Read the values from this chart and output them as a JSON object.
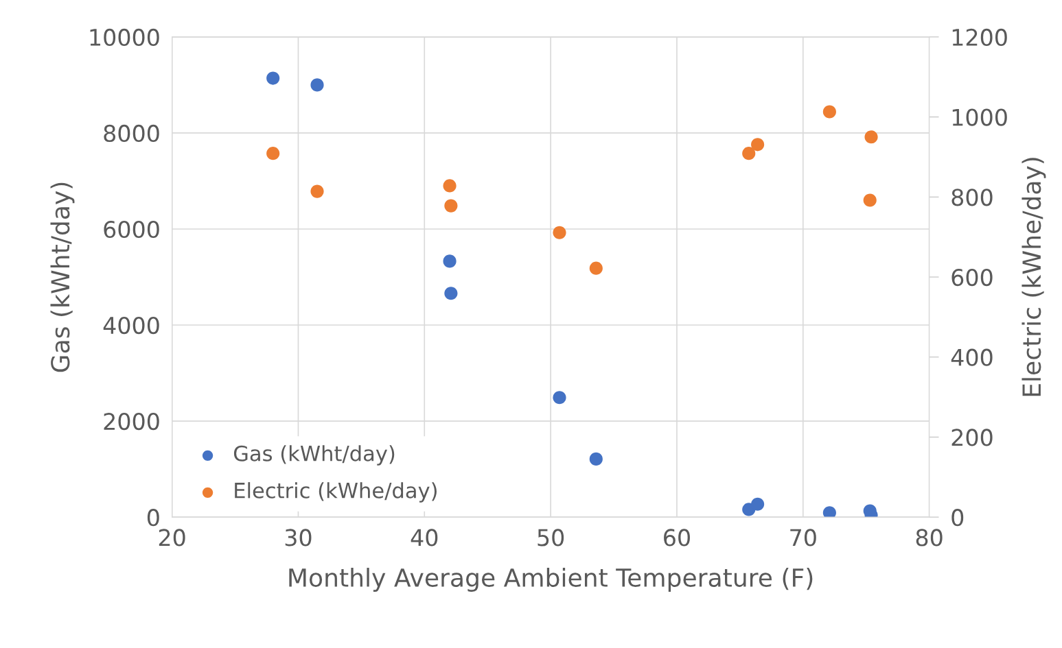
{
  "chart_data": {
    "type": "scatter",
    "xlabel": "Monthly Average Ambient Temperature (F)",
    "ylabel": "Gas (kWht/day)",
    "y2label": "Electric (kWhe/day)",
    "xlim": [
      20,
      80
    ],
    "xticks": [
      20,
      30,
      40,
      50,
      60,
      70,
      80
    ],
    "ylim": [
      0,
      10000
    ],
    "yticks": [
      0,
      2000,
      4000,
      6000,
      8000,
      10000
    ],
    "y2lim": [
      0,
      1200
    ],
    "y2ticks": [
      0,
      200,
      400,
      600,
      800,
      1000,
      1200
    ],
    "grid": true,
    "legend": "bottom left",
    "marker": "circle",
    "series": [
      {
        "name": "Gas (kWht/day)",
        "color": "#4472c4",
        "x": [
          28.0,
          31.5,
          42.0,
          42.1,
          50.7,
          53.6,
          65.7,
          66.4,
          72.1,
          75.3,
          75.4
        ],
        "values": [
          9140,
          9000,
          5330,
          4660,
          2490,
          1210,
          160,
          270,
          90,
          130,
          40
        ]
      },
      {
        "name": "Electric (kWhe/day)",
        "color": "#ed7d31",
        "axis": "y2",
        "x": [
          28.0,
          31.5,
          42.0,
          42.1,
          50.7,
          53.6,
          65.7,
          66.4,
          72.1,
          75.4,
          75.3
        ],
        "values": [
          909,
          814,
          828,
          778,
          711,
          622,
          909,
          931,
          1013,
          950,
          792
        ]
      }
    ]
  }
}
